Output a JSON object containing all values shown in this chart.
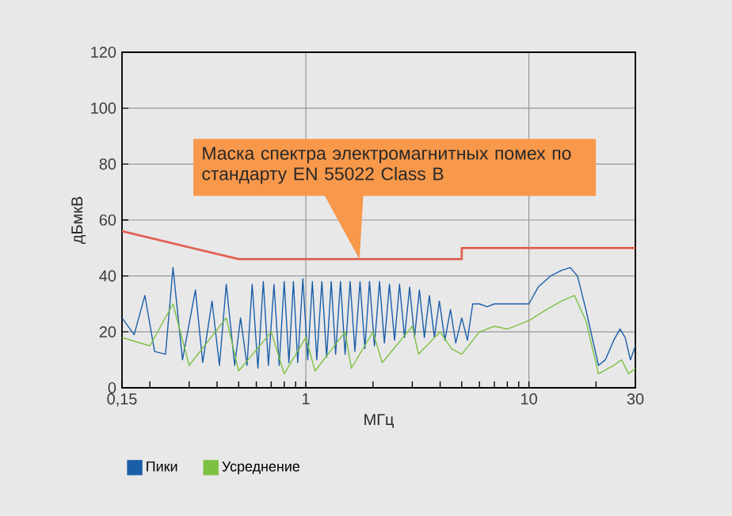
{
  "chart_data": {
    "type": "line",
    "xlabel": "МГц",
    "ylabel": "дБмкВ",
    "xlim": [
      0.15,
      30
    ],
    "ylim": [
      0,
      120
    ],
    "xticks": [
      {
        "value": 0.15,
        "label": "0,15"
      },
      {
        "value": 0.2,
        "label": null
      },
      {
        "value": 0.3,
        "label": null
      },
      {
        "value": 0.4,
        "label": null
      },
      {
        "value": 0.5,
        "label": null
      },
      {
        "value": 0.6,
        "label": null
      },
      {
        "value": 0.7,
        "label": null
      },
      {
        "value": 0.8,
        "label": null
      },
      {
        "value": 0.9,
        "label": null
      },
      1,
      {
        "value": 2,
        "label": null
      },
      {
        "value": 3,
        "label": null
      },
      {
        "value": 4,
        "label": null
      },
      {
        "value": 5,
        "label": null
      },
      {
        "value": 6,
        "label": null
      },
      {
        "value": 7,
        "label": null
      },
      {
        "value": 8,
        "label": null
      },
      {
        "value": 9,
        "label": null
      },
      10,
      {
        "value": 20,
        "label": null
      },
      30
    ],
    "yticks": [
      0,
      20,
      40,
      60,
      80,
      100,
      120
    ],
    "log": "x",
    "grid": true,
    "legend": "bottom",
    "series": [
      {
        "name": "Пики",
        "color": "#1a5ea8",
        "x": [
          0.15,
          0.17,
          0.19,
          0.21,
          0.235,
          0.254,
          0.28,
          0.32,
          0.345,
          0.38,
          0.41,
          0.44,
          0.48,
          0.51,
          0.545,
          0.575,
          0.61,
          0.645,
          0.68,
          0.72,
          0.76,
          0.8,
          0.84,
          0.88,
          0.92,
          0.97,
          1.02,
          1.07,
          1.12,
          1.18,
          1.24,
          1.3,
          1.36,
          1.43,
          1.5,
          1.58,
          1.66,
          1.75,
          1.84,
          1.93,
          2.03,
          2.14,
          2.25,
          2.37,
          2.5,
          2.63,
          2.77,
          2.92,
          3.07,
          3.23,
          3.4,
          3.58,
          3.77,
          3.97,
          4.2,
          4.45,
          4.7,
          5.0,
          5.3,
          5.6,
          6.0,
          6.5,
          7.0,
          8.0,
          9.0,
          10,
          11,
          12.5,
          14,
          15.3,
          16.5,
          18,
          20.5,
          22,
          24,
          25.6,
          27,
          28.5,
          30
        ],
        "values": [
          25,
          19,
          33,
          13,
          12,
          43,
          10,
          35,
          9,
          31,
          8,
          37,
          8,
          25,
          8,
          37,
          7,
          38,
          8,
          37,
          8,
          38,
          9,
          38,
          9,
          39,
          10,
          38,
          10,
          38,
          11,
          38,
          12,
          38,
          12,
          38,
          13,
          38,
          14,
          38,
          15,
          38,
          16,
          37,
          17,
          37,
          18,
          36,
          18,
          35,
          18,
          33,
          18,
          31,
          17,
          28,
          16,
          25,
          17,
          30,
          30,
          29,
          30,
          30,
          30,
          30,
          36,
          40,
          42,
          43,
          40,
          28,
          8,
          10,
          17,
          21,
          18,
          10,
          15
        ]
      },
      {
        "name": "Усреднение",
        "color": "#7dc142",
        "x": [
          0.15,
          0.2,
          0.254,
          0.3,
          0.44,
          0.5,
          0.7,
          0.8,
          1.0,
          1.1,
          1.5,
          1.6,
          2.0,
          2.2,
          3.0,
          3.2,
          4,
          4.5,
          5,
          6,
          7,
          8,
          10,
          12,
          14,
          16,
          18,
          20.5,
          24,
          26,
          28,
          30
        ],
        "values": [
          18,
          15,
          30,
          8,
          25,
          6,
          20,
          5,
          18,
          6,
          20,
          7,
          20,
          9,
          22,
          12,
          20,
          14,
          12,
          20,
          22,
          21,
          24,
          28,
          31,
          33,
          24,
          5,
          8,
          10,
          5,
          7
        ]
      },
      {
        "color": "#e06050",
        "x": [
          0.15,
          0.5,
          5,
          5,
          30
        ],
        "values": [
          56,
          46,
          46,
          50,
          50
        ]
      }
    ],
    "annotations": [
      "Маска спектра электромагнитных помех по стандарту EN 55022 Class B"
    ]
  }
}
